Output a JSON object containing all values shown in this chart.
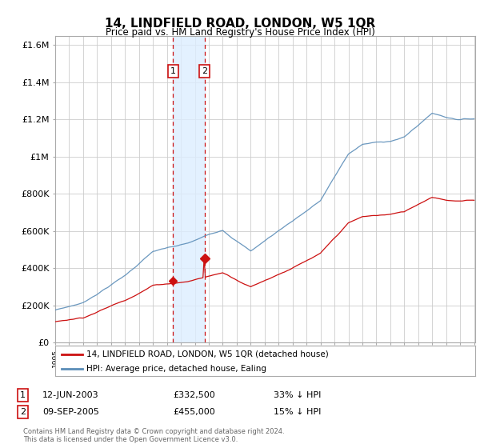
{
  "title": "14, LINDFIELD ROAD, LONDON, W5 1QR",
  "subtitle": "Price paid vs. HM Land Registry's House Price Index (HPI)",
  "legend_line1": "14, LINDFIELD ROAD, LONDON, W5 1QR (detached house)",
  "legend_line2": "HPI: Average price, detached house, Ealing",
  "transaction1_date": "12-JUN-2003",
  "transaction1_price": 332500,
  "transaction1_label": "33% ↓ HPI",
  "transaction2_date": "09-SEP-2005",
  "transaction2_price": 455000,
  "transaction2_label": "15% ↓ HPI",
  "t1_year": 2003.45,
  "t2_year": 2005.7,
  "footer": "Contains HM Land Registry data © Crown copyright and database right 2024.\nThis data is licensed under the Open Government Licence v3.0.",
  "hpi_color": "#5b8db8",
  "price_color": "#cc1111",
  "bg_color": "#ffffff",
  "grid_color": "#cccccc",
  "highlight_color": "#ddeeff",
  "ylim": [
    0,
    1650000
  ],
  "yticks": [
    0,
    200000,
    400000,
    600000,
    800000,
    1000000,
    1200000,
    1400000,
    1600000
  ],
  "ytick_labels": [
    "£0",
    "£200K",
    "£400K",
    "£600K",
    "£800K",
    "£1M",
    "£1.2M",
    "£1.4M",
    "£1.6M"
  ],
  "xstart": 1995,
  "xend": 2025
}
